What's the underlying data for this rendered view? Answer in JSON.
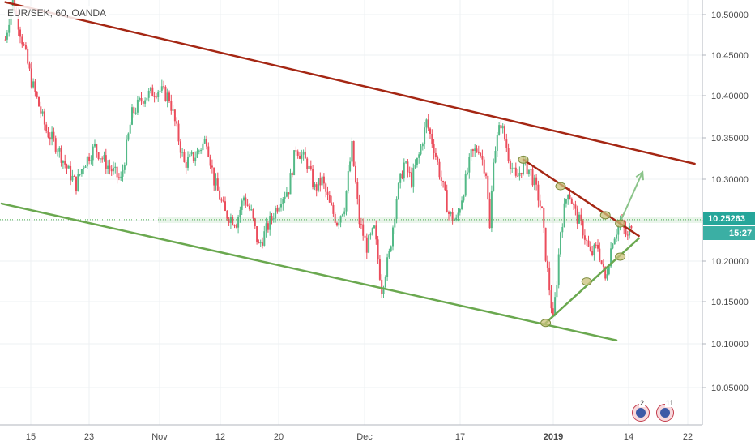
{
  "symbol": "EUR/SEK, 60, OANDA",
  "price_axis": {
    "ticks": [
      "10.50000",
      "10.45000",
      "10.40000",
      "10.35000",
      "10.30000",
      "10.25000",
      "10.20000",
      "10.15000",
      "10.10000",
      "10.05000"
    ],
    "current_price": "10.25263",
    "countdown": "15:27"
  },
  "time_axis": {
    "ticks": [
      "15",
      "23",
      "Nov",
      "12",
      "20",
      "Dec",
      "17",
      "2019",
      "14",
      "22"
    ],
    "bold": [
      "2019"
    ]
  },
  "events": [
    {
      "count": "2"
    },
    {
      "count": "11"
    }
  ],
  "colors": {
    "up": "#53b987",
    "down": "#eb4d5c",
    "resistance": "#a52714",
    "support": "#6aa84f",
    "price_line": "#4caf50",
    "badge": "#26a69a"
  },
  "chart_data": {
    "type": "candlestick",
    "instrument": "EUR/SEK",
    "timeframe": "60",
    "source": "OANDA",
    "ylim": [
      10.0,
      10.52
    ],
    "price_path": [
      [
        1,
        10.47
      ],
      [
        3,
        10.52
      ],
      [
        8,
        10.42
      ],
      [
        12,
        10.36
      ],
      [
        15,
        10.34
      ],
      [
        18,
        10.31
      ],
      [
        20,
        10.295
      ],
      [
        22,
        10.32
      ],
      [
        25,
        10.34
      ],
      [
        28,
        10.32
      ],
      [
        32,
        10.3
      ],
      [
        35,
        10.38
      ],
      [
        38,
        10.4
      ],
      [
        42,
        10.41
      ],
      [
        45,
        10.4
      ],
      [
        47,
        10.36
      ],
      [
        49,
        10.32
      ],
      [
        52,
        10.33
      ],
      [
        55,
        10.35
      ],
      [
        57,
        10.3
      ],
      [
        60,
        10.26
      ],
      [
        63,
        10.25
      ],
      [
        65,
        10.28
      ],
      [
        67,
        10.26
      ],
      [
        69,
        10.22
      ],
      [
        72,
        10.25
      ],
      [
        75,
        10.28
      ],
      [
        77,
        10.29
      ],
      [
        79,
        10.34
      ],
      [
        82,
        10.32
      ],
      [
        84,
        10.29
      ],
      [
        86,
        10.3
      ],
      [
        88,
        10.27
      ],
      [
        90,
        10.25
      ],
      [
        92,
        10.27
      ],
      [
        94,
        10.34
      ],
      [
        96,
        10.25
      ],
      [
        98,
        10.22
      ],
      [
        100,
        10.24
      ],
      [
        102,
        10.17
      ],
      [
        104,
        10.21
      ],
      [
        106,
        10.28
      ],
      [
        108,
        10.32
      ],
      [
        110,
        10.3
      ],
      [
        112,
        10.33
      ],
      [
        114,
        10.37
      ],
      [
        116,
        10.34
      ],
      [
        118,
        10.3
      ],
      [
        120,
        10.26
      ],
      [
        122,
        10.25
      ],
      [
        124,
        10.29
      ],
      [
        126,
        10.33
      ],
      [
        128,
        10.34
      ],
      [
        130,
        10.31
      ],
      [
        131,
        10.24
      ],
      [
        132,
        10.33
      ],
      [
        134,
        10.37
      ],
      [
        136,
        10.33
      ],
      [
        138,
        10.3
      ],
      [
        140,
        10.32
      ],
      [
        142,
        10.31
      ],
      [
        144,
        10.28
      ],
      [
        145,
        10.26
      ],
      [
        146,
        10.21
      ],
      [
        148,
        10.13
      ],
      [
        149,
        10.18
      ],
      [
        150,
        10.24
      ],
      [
        152,
        10.29
      ],
      [
        154,
        10.26
      ],
      [
        156,
        10.24
      ],
      [
        158,
        10.21
      ],
      [
        160,
        10.22
      ],
      [
        162,
        10.18
      ],
      [
        164,
        10.23
      ],
      [
        166,
        10.25
      ],
      [
        168,
        10.23
      ],
      [
        169,
        10.25
      ]
    ],
    "drawings": {
      "upper_channel": [
        [
          1,
          10.515
        ],
        [
          186,
          10.32
        ]
      ],
      "lower_channel": [
        [
          0,
          10.272
        ],
        [
          165,
          10.107
        ]
      ],
      "triangle_top": [
        [
          140,
          10.325
        ],
        [
          171,
          10.233
        ]
      ],
      "triangle_bottom": [
        [
          146,
          10.128
        ],
        [
          171,
          10.23
        ]
      ],
      "projection_arrow": [
        [
          166,
          10.25
        ],
        [
          172,
          10.31
        ]
      ],
      "touch_points": [
        [
          140,
          10.325
        ],
        [
          150,
          10.293
        ],
        [
          162,
          10.258
        ],
        [
          166,
          10.248
        ],
        [
          157,
          10.178
        ],
        [
          146,
          10.128
        ],
        [
          166,
          10.208
        ]
      ],
      "current_price_line": 10.25263
    }
  }
}
